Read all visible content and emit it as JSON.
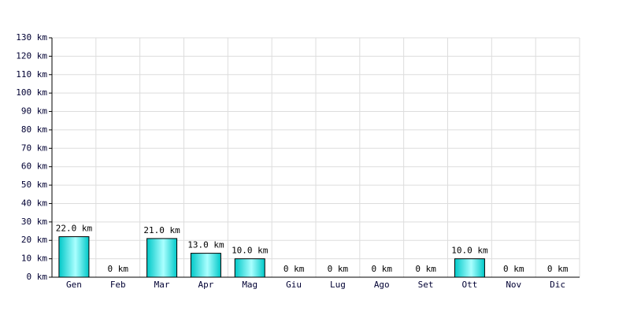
{
  "chart_data": {
    "type": "bar",
    "categories": [
      "Gen",
      "Feb",
      "Mar",
      "Apr",
      "Mag",
      "Giu",
      "Lug",
      "Ago",
      "Set",
      "Ott",
      "Nov",
      "Dic"
    ],
    "values": [
      22,
      0,
      21,
      13,
      10,
      0,
      0,
      0,
      0,
      10,
      0,
      0
    ],
    "value_labels": [
      "22.0 km",
      "0 km",
      "21.0 km",
      "13.0 km",
      "10.0 km",
      "0 km",
      "0 km",
      "0 km",
      "0 km",
      "10.0 km",
      "0 km",
      "0 km"
    ],
    "color": "#00c8c8",
    "ylim": [
      0,
      130
    ],
    "yticks": [
      {
        "value": 0,
        "label": "0 km"
      },
      {
        "value": 10,
        "label": "10 km"
      },
      {
        "value": 20,
        "label": "20 km"
      },
      {
        "value": 30,
        "label": "30 km"
      },
      {
        "value": 40,
        "label": "40 km"
      },
      {
        "value": 50,
        "label": "50 km"
      },
      {
        "value": 60,
        "label": "60 km"
      },
      {
        "value": 70,
        "label": "70 km"
      },
      {
        "value": 80,
        "label": "80 km"
      },
      {
        "value": 90,
        "label": "90 km"
      },
      {
        "value": 100,
        "label": "100 km"
      },
      {
        "value": 110,
        "label": "110 km"
      },
      {
        "value": 120,
        "label": "120 km"
      },
      {
        "value": 130,
        "label": "130 km"
      }
    ],
    "grid": true
  }
}
